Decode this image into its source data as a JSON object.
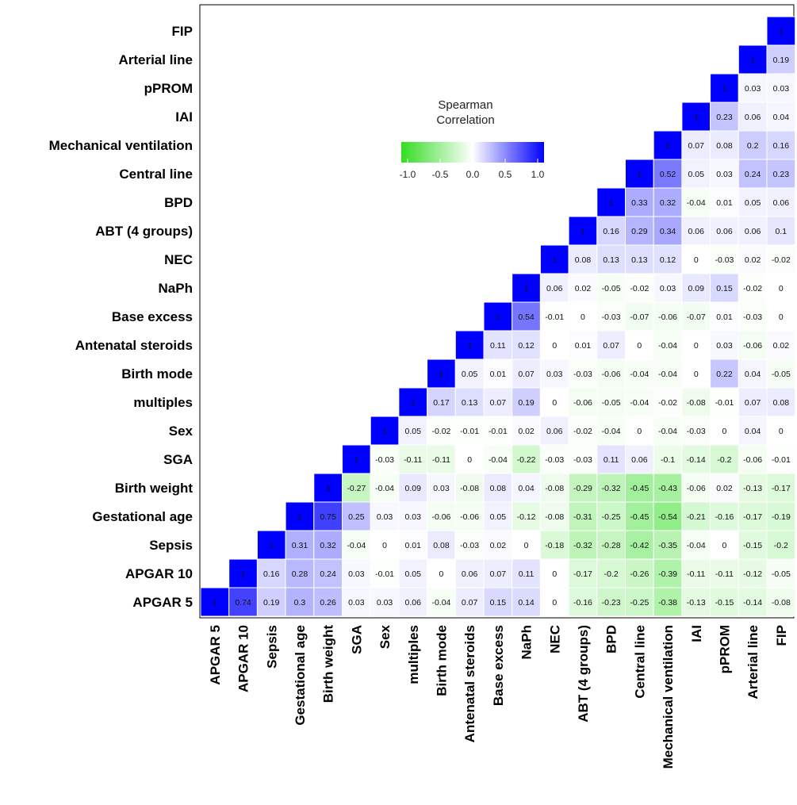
{
  "chart_data": {
    "type": "heatmap",
    "variables": [
      "APGAR 5",
      "APGAR 10",
      "Sepsis",
      "Gestational age",
      "Birth weight",
      "SGA",
      "Sex",
      "multiples",
      "Birth mode",
      "Antenatal steroids",
      "Base excess",
      "NaPh",
      "NEC",
      "ABT (4 groups)",
      "BPD",
      "Central line",
      "Mechanical ventilation",
      "IAI",
      "pPROM",
      "Arterial line",
      "FIP"
    ],
    "rows": [
      {
        "row": "APGAR 5",
        "cells": [
          "1",
          "0.74",
          "0.19",
          "0.3",
          "0.26",
          "0.03",
          "0.03",
          "0.06",
          "-0.04",
          "0.07",
          "0.15",
          "0.14",
          "0",
          "-0.16",
          "-0.23",
          "-0.25",
          "-0.38",
          "-0.13",
          "-0.15",
          "-0.14",
          "-0.08"
        ]
      },
      {
        "row": "APGAR 10",
        "cells": [
          "1",
          "0.16",
          "0.28",
          "0.24",
          "0.03",
          "-0.01",
          "0.05",
          "0",
          "0.06",
          "0.07",
          "0.11",
          "0",
          "-0.17",
          "-0.2",
          "-0.26",
          "-0.39",
          "-0.11",
          "-0.11",
          "-0.12",
          "-0.05"
        ]
      },
      {
        "row": "Sepsis",
        "cells": [
          "1",
          "0.31",
          "0.32",
          "-0.04",
          "0",
          "0.01",
          "0.08",
          "-0.03",
          "0.02",
          "0",
          "-0.18",
          "-0.32",
          "-0.28",
          "-0.42",
          "-0.35",
          "-0.04",
          "0",
          "-0.15",
          "-0.2"
        ]
      },
      {
        "row": "Gestational age",
        "cells": [
          "1",
          "0.75",
          "0.25",
          "0.03",
          "0.03",
          "-0.06",
          "-0.06",
          "0.05",
          "-0.12",
          "-0.08",
          "-0.31",
          "-0.25",
          "-0.45",
          "-0.54",
          "-0.21",
          "-0.16",
          "-0.17",
          "-0.19"
        ]
      },
      {
        "row": "Birth weight",
        "cells": [
          "1",
          "-0.27",
          "-0.04",
          "0.09",
          "0.03",
          "-0.08",
          "0.08",
          "0.04",
          "-0.08",
          "-0.29",
          "-0.32",
          "-0.45",
          "-0.43",
          "-0.06",
          "0.02",
          "-0.13",
          "-0.17"
        ]
      },
      {
        "row": "SGA",
        "cells": [
          "1",
          "-0.03",
          "-0.11",
          "-0.11",
          "0",
          "-0.04",
          "-0.22",
          "-0.03",
          "-0.03",
          "0.11",
          "0.06",
          "-0.1",
          "-0.14",
          "-0.2",
          "-0.06",
          "-0.01"
        ]
      },
      {
        "row": "Sex",
        "cells": [
          "1",
          "0.05",
          "-0.02",
          "-0.01",
          "-0.01",
          "0.02",
          "0.06",
          "-0.02",
          "-0.04",
          "0",
          "-0.04",
          "-0.03",
          "0",
          "0.04",
          "0"
        ]
      },
      {
        "row": "multiples",
        "cells": [
          "1",
          "0.17",
          "0.13",
          "0.07",
          "0.19",
          "0",
          "-0.06",
          "-0.05",
          "-0.04",
          "-0.02",
          "-0.08",
          "-0.01",
          "0.07",
          "0.08"
        ]
      },
      {
        "row": "Birth mode",
        "cells": [
          "1",
          "0.05",
          "0.01",
          "0.07",
          "0.03",
          "-0.03",
          "-0.06",
          "-0.04",
          "-0.04",
          "0",
          "0.22",
          "0.04",
          "-0.05"
        ]
      },
      {
        "row": "Antenatal steroids",
        "cells": [
          "1",
          "0.11",
          "0.12",
          "0",
          "0.01",
          "0.07",
          "0",
          "-0.04",
          "0",
          "0.03",
          "-0.06",
          "0.02"
        ]
      },
      {
        "row": "Base excess",
        "cells": [
          "1",
          "0.54",
          "-0.01",
          "0",
          "-0.03",
          "-0.07",
          "-0.06",
          "-0.07",
          "0.01",
          "-0.03",
          "0"
        ]
      },
      {
        "row": "NaPh",
        "cells": [
          "1",
          "0.06",
          "0.02",
          "-0.05",
          "-0.02",
          "0.03",
          "0.09",
          "0.15",
          "-0.02",
          "0"
        ]
      },
      {
        "row": "NEC",
        "cells": [
          "1",
          "0.08",
          "0.13",
          "0.13",
          "0.12",
          "0",
          "-0.03",
          "0.02",
          "-0.02"
        ]
      },
      {
        "row": "ABT (4 groups)",
        "cells": [
          "1",
          "0.16",
          "0.29",
          "0.34",
          "0.06",
          "0.06",
          "0.06",
          "0.1"
        ]
      },
      {
        "row": "BPD",
        "cells": [
          "1",
          "0.33",
          "0.32",
          "-0.04",
          "0.01",
          "0.05",
          "0.06"
        ]
      },
      {
        "row": "Central line",
        "cells": [
          "1",
          "0.52",
          "0.05",
          "0.03",
          "0.24",
          "0.23"
        ]
      },
      {
        "row": "Mechanical ventilation",
        "cells": [
          "1",
          "0.07",
          "0.08",
          "0.2",
          "0.16"
        ]
      },
      {
        "row": "IAI",
        "cells": [
          "1",
          "0.23",
          "0.06",
          "0.04"
        ]
      },
      {
        "row": "pPROM",
        "cells": [
          "1",
          "0.03",
          "0.03"
        ]
      },
      {
        "row": "Arterial line",
        "cells": [
          "1",
          "0.19"
        ]
      },
      {
        "row": "FIP",
        "cells": [
          "1"
        ]
      }
    ],
    "legend": {
      "title_line1": "Spearman",
      "title_line2": "Correlation",
      "ticks": [
        "-1.0",
        "-0.5",
        "0.0",
        "0.5",
        "1.0"
      ],
      "range": [
        -1,
        1
      ]
    },
    "colors": {
      "negative": "#33dd22",
      "zero": "#ffffff",
      "positive": "#0000ff"
    }
  }
}
